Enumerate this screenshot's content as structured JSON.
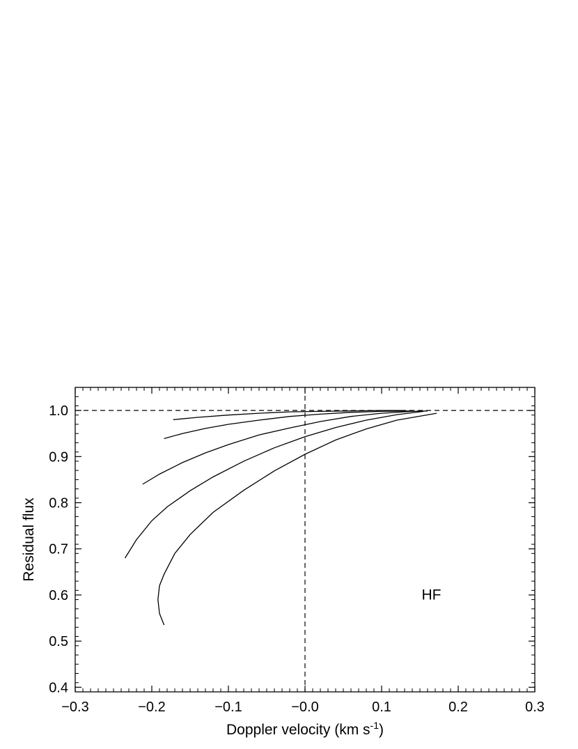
{
  "chart_data": {
    "type": "line",
    "title": "",
    "xlabel": "Doppler velocity (km s",
    "xlabel_superscript": "-1",
    "xlabel_suffix": ")",
    "ylabel": "Residual flux",
    "xlim": [
      -0.3,
      0.3
    ],
    "ylim": [
      0.39,
      1.05
    ],
    "x_ticks": [
      -0.3,
      -0.2,
      -0.1,
      -0.0,
      0.1,
      0.2,
      0.3
    ],
    "x_tick_labels": [
      "−0.3",
      "−0.2",
      "−0.1",
      "−0.0",
      "0.1",
      "0.2",
      "0.3"
    ],
    "y_ticks": [
      0.4,
      0.5,
      0.6,
      0.7,
      0.8,
      0.9,
      1.0
    ],
    "y_tick_labels": [
      "0.4",
      "0.5",
      "0.6",
      "0.7",
      "0.8",
      "0.9",
      "1.0"
    ],
    "grid": false,
    "annotation": "HF",
    "reference_lines": [
      {
        "orientation": "horizontal",
        "value": 1.0,
        "style": "dashed"
      },
      {
        "orientation": "vertical",
        "value": 0.0,
        "style": "dashed"
      }
    ],
    "series": [
      {
        "points": [
          [
            -0.172,
            0.98
          ],
          [
            -0.14,
            0.985
          ],
          [
            -0.1,
            0.99
          ],
          [
            -0.06,
            0.994
          ],
          [
            -0.02,
            0.997
          ],
          [
            0.02,
            0.998
          ],
          [
            0.06,
            0.999
          ],
          [
            0.1,
            1.0
          ],
          [
            0.13,
            1.0
          ]
        ]
      },
      {
        "points": [
          [
            -0.184,
            0.939
          ],
          [
            -0.16,
            0.95
          ],
          [
            -0.13,
            0.961
          ],
          [
            -0.1,
            0.97
          ],
          [
            -0.06,
            0.979
          ],
          [
            -0.02,
            0.987
          ],
          [
            0.02,
            0.992
          ],
          [
            0.06,
            0.996
          ],
          [
            0.1,
            0.998
          ],
          [
            0.14,
            0.999
          ]
        ]
      },
      {
        "points": [
          [
            -0.212,
            0.84
          ],
          [
            -0.19,
            0.862
          ],
          [
            -0.16,
            0.887
          ],
          [
            -0.13,
            0.908
          ],
          [
            -0.1,
            0.926
          ],
          [
            -0.06,
            0.947
          ],
          [
            -0.02,
            0.962
          ],
          [
            0.02,
            0.976
          ],
          [
            0.06,
            0.987
          ],
          [
            0.1,
            0.994
          ],
          [
            0.14,
            0.998
          ],
          [
            0.16,
            0.999
          ]
        ]
      },
      {
        "points": [
          [
            -0.235,
            0.68
          ],
          [
            -0.22,
            0.72
          ],
          [
            -0.2,
            0.761
          ],
          [
            -0.18,
            0.791
          ],
          [
            -0.15,
            0.826
          ],
          [
            -0.12,
            0.856
          ],
          [
            -0.08,
            0.89
          ],
          [
            -0.04,
            0.919
          ],
          [
            0.0,
            0.943
          ],
          [
            0.04,
            0.963
          ],
          [
            0.08,
            0.979
          ],
          [
            0.12,
            0.991
          ],
          [
            0.155,
            0.998
          ]
        ]
      },
      {
        "points": [
          [
            -0.184,
            0.535
          ],
          [
            -0.19,
            0.56
          ],
          [
            -0.192,
            0.59
          ],
          [
            -0.19,
            0.62
          ],
          [
            -0.184,
            0.645
          ],
          [
            -0.17,
            0.69
          ],
          [
            -0.15,
            0.731
          ],
          [
            -0.12,
            0.779
          ],
          [
            -0.08,
            0.827
          ],
          [
            -0.04,
            0.869
          ],
          [
            0.0,
            0.905
          ],
          [
            0.04,
            0.936
          ],
          [
            0.08,
            0.96
          ],
          [
            0.12,
            0.979
          ],
          [
            0.172,
            0.994
          ]
        ]
      }
    ]
  }
}
